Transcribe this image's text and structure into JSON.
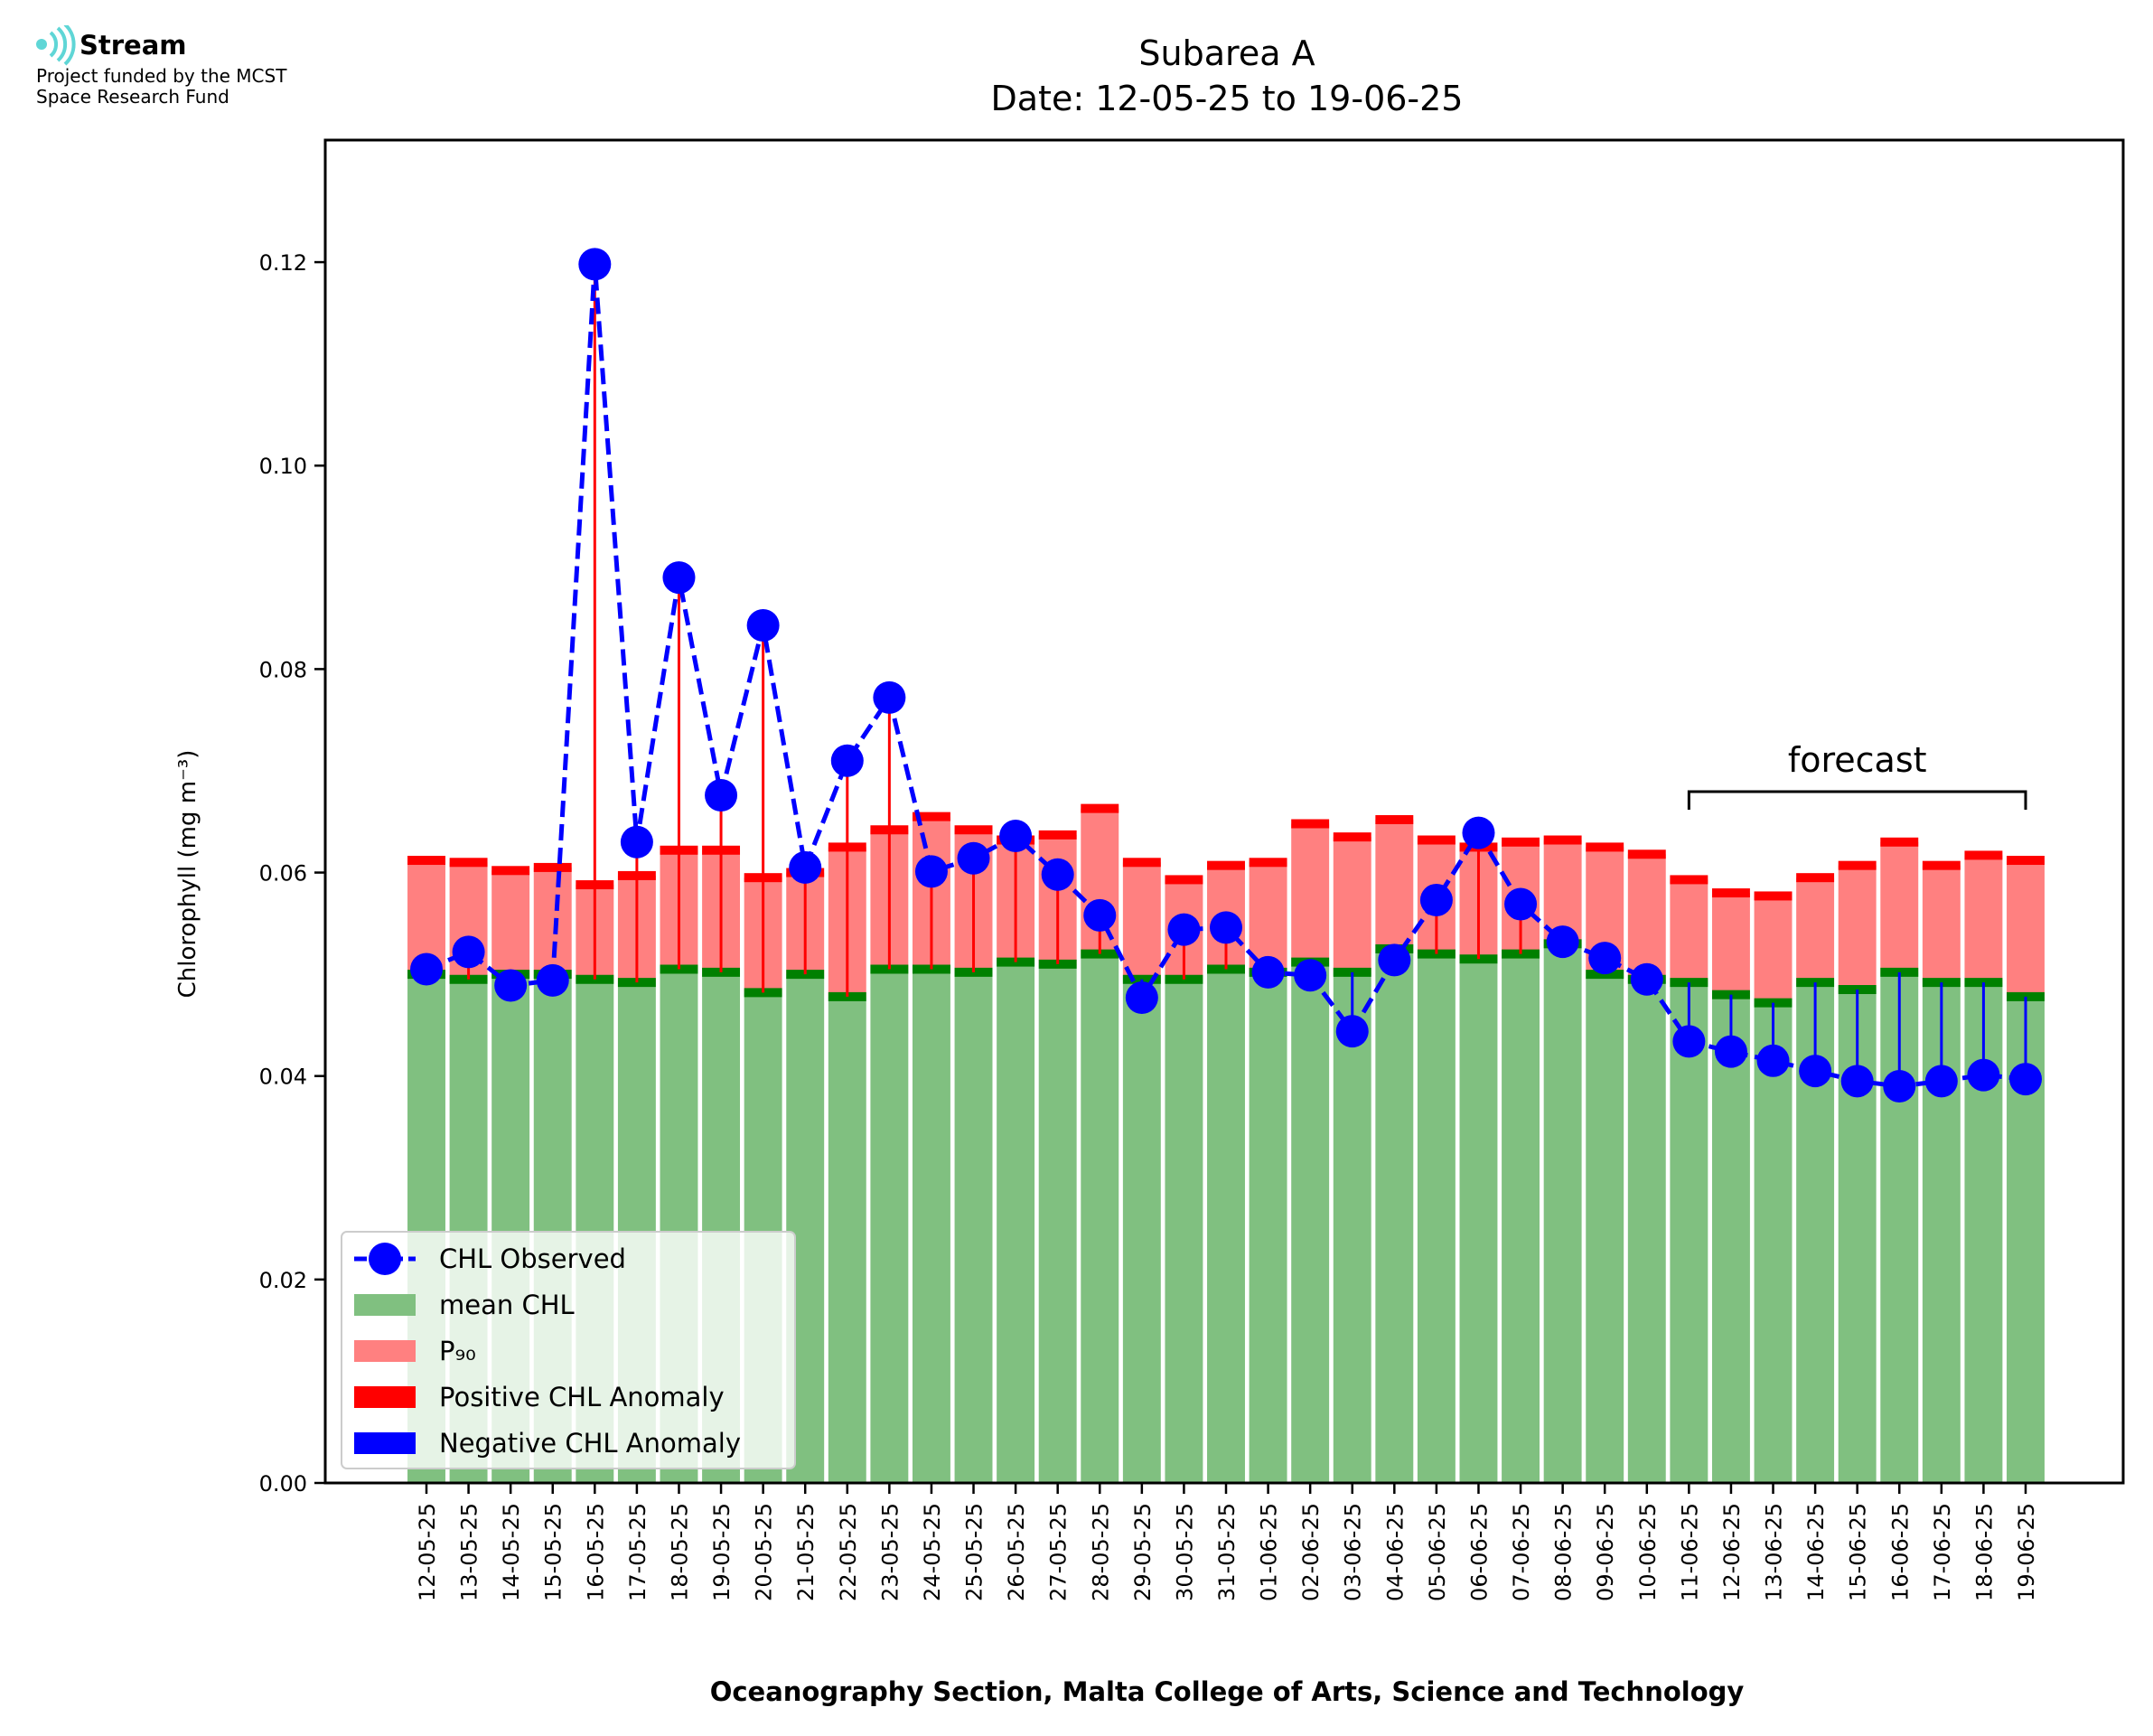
{
  "logo": {
    "name": "Stream",
    "line1": "Project funded by the MCST",
    "line2": "Space Research Fund"
  },
  "chart_data": {
    "type": "bar",
    "title": "Subarea A",
    "subtitle": "Date: 12-05-25 to 19-06-25",
    "xlabel": "Oceanography Section, Malta College of Arts, Science and Technology",
    "ylabel": "Chlorophyll (mg m⁻³)",
    "ylim": [
      0,
      0.132
    ],
    "yticks": [
      "0.00",
      "0.02",
      "0.04",
      "0.06",
      "0.08",
      "0.10",
      "0.12"
    ],
    "categories": [
      "12-05-25",
      "13-05-25",
      "14-05-25",
      "15-05-25",
      "16-05-25",
      "17-05-25",
      "18-05-25",
      "19-05-25",
      "20-05-25",
      "21-05-25",
      "22-05-25",
      "23-05-25",
      "24-05-25",
      "25-05-25",
      "26-05-25",
      "27-05-25",
      "28-05-25",
      "29-05-25",
      "30-05-25",
      "31-05-25",
      "01-06-25",
      "02-06-25",
      "03-06-25",
      "04-06-25",
      "05-06-25",
      "06-06-25",
      "07-06-25",
      "08-06-25",
      "09-06-25",
      "10-06-25",
      "11-06-25",
      "12-06-25",
      "13-06-25",
      "14-06-25",
      "15-06-25",
      "16-06-25",
      "17-06-25",
      "18-06-25",
      "19-06-25"
    ],
    "series": [
      {
        "name": "mean CHL",
        "color": "#80c080",
        "values": [
          0.05,
          0.0495,
          0.05,
          0.05,
          0.0495,
          0.0492,
          0.0505,
          0.0502,
          0.0482,
          0.05,
          0.0478,
          0.0505,
          0.0505,
          0.0502,
          0.0512,
          0.051,
          0.052,
          0.0495,
          0.0495,
          0.0505,
          0.0502,
          0.0512,
          0.0502,
          0.0525,
          0.052,
          0.0515,
          0.052,
          0.053,
          0.05,
          0.0495,
          0.0492,
          0.048,
          0.0472,
          0.0492,
          0.0485,
          0.0502,
          0.0492,
          0.0492,
          0.0478
        ]
      },
      {
        "name": "P₉₀",
        "color": "#ff8080",
        "values": [
          0.0612,
          0.061,
          0.0602,
          0.0605,
          0.0588,
          0.0597,
          0.0622,
          0.0622,
          0.0595,
          0.06,
          0.0625,
          0.0642,
          0.0655,
          0.0642,
          0.0632,
          0.0637,
          0.0663,
          0.061,
          0.0593,
          0.0607,
          0.061,
          0.0648,
          0.0635,
          0.0652,
          0.0632,
          0.0625,
          0.063,
          0.0632,
          0.0625,
          0.0618,
          0.0593,
          0.058,
          0.0577,
          0.0595,
          0.0607,
          0.063,
          0.0607,
          0.0617,
          0.0612
        ]
      },
      {
        "name": "CHL Observed",
        "color": "#0000ff",
        "values": [
          0.0505,
          0.0522,
          0.0489,
          0.0494,
          0.1198,
          0.063,
          0.089,
          0.0676,
          0.0843,
          0.0605,
          0.071,
          0.0772,
          0.0601,
          0.0614,
          0.0636,
          0.0598,
          0.0558,
          0.0477,
          0.0544,
          0.0546,
          0.0502,
          0.0499,
          0.0444,
          0.0514,
          0.0573,
          0.0639,
          0.0569,
          0.0532,
          0.0516,
          0.0495,
          0.0434,
          0.0424,
          0.0415,
          0.0405,
          0.0395,
          0.039,
          0.0395,
          0.0401,
          0.0397
        ]
      }
    ],
    "legend": {
      "placement": "lower-left",
      "items": [
        "CHL Observed",
        "mean CHL",
        "P₉₀",
        "Positive CHL Anomaly",
        "Negative CHL Anomaly"
      ]
    },
    "colors": {
      "mean_cap": "#008000",
      "p90_cap": "#ff0000",
      "positive_anomaly": "#ff0000",
      "negative_anomaly": "#0000ff"
    },
    "annotation": {
      "text": "forecast",
      "from": "11-06-25",
      "to": "19-06-25"
    },
    "grid": false
  }
}
